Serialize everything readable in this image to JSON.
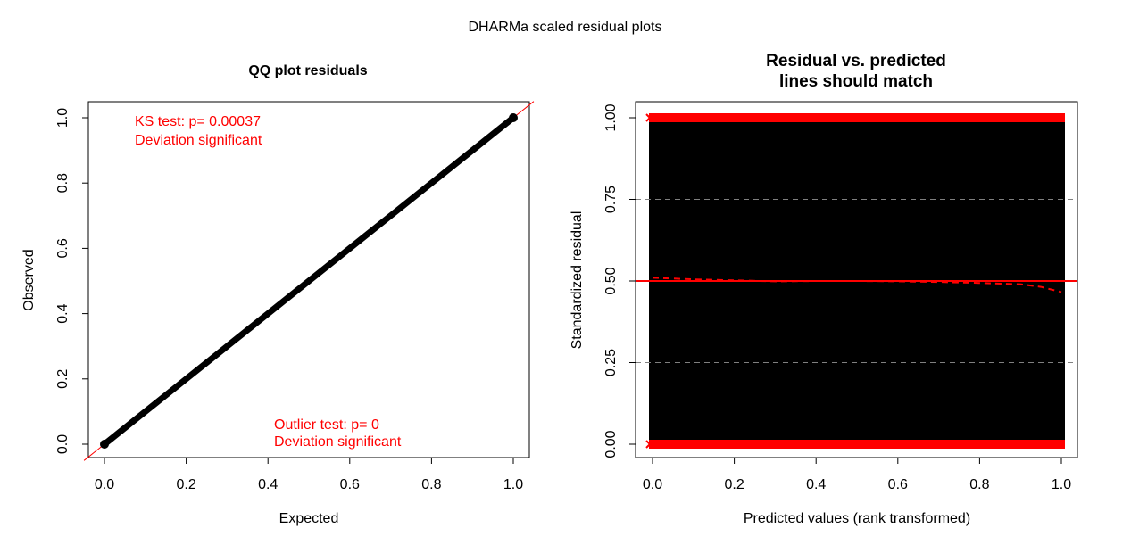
{
  "figure_title": "DHARMa scaled residual plots",
  "chart_data": [
    {
      "type": "scatter",
      "title": "QQ plot residuals",
      "xlabel": "Expected",
      "ylabel": "Observed",
      "xlim": [
        0,
        1
      ],
      "ylim": [
        0,
        1
      ],
      "xticks": [
        "0.0",
        "0.2",
        "0.4",
        "0.6",
        "0.8",
        "1.0"
      ],
      "yticks": [
        "0.0",
        "0.2",
        "0.4",
        "0.6",
        "0.8",
        "1.0"
      ],
      "grid": false,
      "series": [
        {
          "x": [
            0.0,
            0.1,
            0.2,
            0.3,
            0.4,
            0.5,
            0.6,
            0.7,
            0.8,
            0.9,
            1.0
          ],
          "y": [
            0.0,
            0.1,
            0.2,
            0.3,
            0.4,
            0.5,
            0.6,
            0.7,
            0.8,
            0.9,
            1.0
          ],
          "color": "#000000"
        }
      ],
      "reference_line": {
        "slope": 1,
        "intercept": 0,
        "color": "#ff0000"
      },
      "annotations": [
        {
          "lines": [
            "KS test: p= 0.00037",
            "Deviation  significant"
          ],
          "color": "#ff0000"
        },
        {
          "lines": [
            "Outlier test: p= 0",
            "Deviation  significant"
          ],
          "color": "#ff0000"
        }
      ]
    },
    {
      "type": "scatter",
      "title_lines": [
        "Residual vs. predicted",
        "lines should match"
      ],
      "xlabel": "Predicted values (rank transformed)",
      "ylabel": "Standardized residual",
      "xlim": [
        0,
        1
      ],
      "ylim": [
        0,
        1
      ],
      "xticks": [
        "0.0",
        "0.2",
        "0.4",
        "0.6",
        "0.8",
        "1.0"
      ],
      "yticks": [
        "0.00",
        "0.25",
        "0.50",
        "0.75",
        "1.00"
      ],
      "grid": true,
      "hlines": [
        0.25,
        0.5,
        0.75
      ],
      "points_fill": {
        "x": [
          0,
          1
        ],
        "y": [
          0,
          1
        ],
        "color": "#000000"
      },
      "outliers": {
        "y_values": [
          0,
          1
        ],
        "color": "#ff0000"
      },
      "reference_line": {
        "y": 0.5,
        "color": "#ff0000"
      },
      "quantile_curve": {
        "x": [
          0.0,
          0.1,
          0.2,
          0.3,
          0.4,
          0.5,
          0.6,
          0.7,
          0.8,
          0.9,
          0.95,
          1.0
        ],
        "y": [
          0.51,
          0.505,
          0.502,
          0.499,
          0.5,
          0.5,
          0.499,
          0.497,
          0.494,
          0.49,
          0.482,
          0.466
        ],
        "color": "#ff0000",
        "style": "dashed"
      }
    }
  ]
}
